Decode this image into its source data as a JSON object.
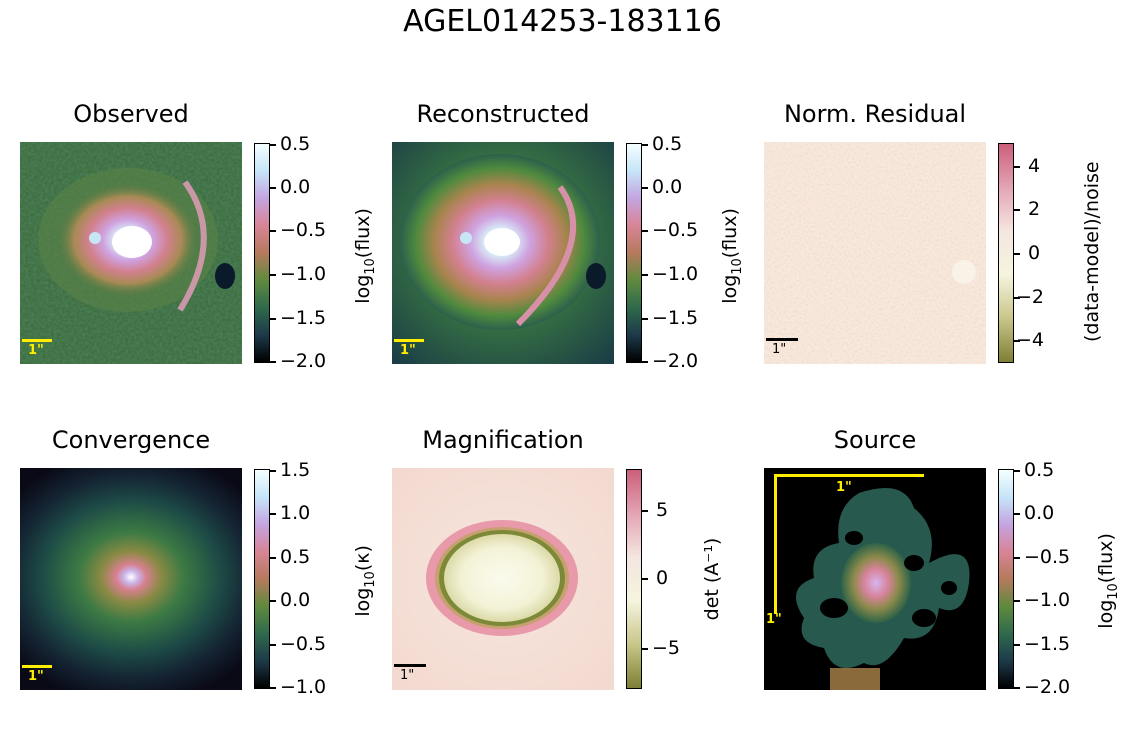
{
  "figure": {
    "title": "AGEL014253-183116"
  },
  "panels": [
    {
      "title": "Observed",
      "cbar_label": "log10(flux)",
      "scale_label": "1\""
    },
    {
      "title": "Reconstructed",
      "cbar_label": "log10(flux)",
      "scale_label": "1\""
    },
    {
      "title": "Norm. Residual",
      "cbar_label": "(data-model)/noise",
      "scale_label": "1\""
    },
    {
      "title": "Convergence",
      "cbar_label": "log10(κ)",
      "scale_label": "1\""
    },
    {
      "title": "Magnification",
      "cbar_label": "det (A⁻¹)",
      "scale_label": "1\""
    },
    {
      "title": "Source",
      "cbar_label": "log10(flux)",
      "scale_label_x": "1\"",
      "scale_label_y": "1\""
    }
  ],
  "chart_data": [
    {
      "type": "heatmap",
      "title": "Observed",
      "colorbar": {
        "label": "log10(flux)",
        "range": [
          -2.0,
          0.5
        ],
        "ticks": [
          "0.5",
          "0.0",
          "−0.5",
          "−1.0",
          "−1.5",
          "−2.0"
        ]
      },
      "colormap": "cubehelix"
    },
    {
      "type": "heatmap",
      "title": "Reconstructed",
      "colorbar": {
        "label": "log10(flux)",
        "range": [
          -2.0,
          0.5
        ],
        "ticks": [
          "0.5",
          "0.0",
          "−0.5",
          "−1.0",
          "−1.5",
          "−2.0"
        ]
      },
      "colormap": "cubehelix"
    },
    {
      "type": "heatmap",
      "title": "Norm. Residual",
      "colorbar": {
        "label": "(data-model)/noise",
        "range": [
          -5,
          5
        ],
        "ticks": [
          "4",
          "2",
          "0",
          "−2",
          "−4"
        ]
      },
      "colormap": "pink-olive diverging"
    },
    {
      "type": "heatmap",
      "title": "Convergence",
      "colorbar": {
        "label": "log10(κ)",
        "range": [
          -1.0,
          1.5
        ],
        "ticks": [
          "1.5",
          "1.0",
          "0.5",
          "0.0",
          "−0.5",
          "−1.0"
        ]
      },
      "colormap": "cubehelix"
    },
    {
      "type": "heatmap",
      "title": "Magnification",
      "colorbar": {
        "label": "det (A⁻¹)",
        "range": [
          -8,
          8
        ],
        "ticks": [
          "5",
          "0",
          "−5"
        ]
      },
      "colormap": "pink-olive diverging"
    },
    {
      "type": "heatmap",
      "title": "Source",
      "colorbar": {
        "label": "log10(flux)",
        "range": [
          -2.0,
          0.5
        ],
        "ticks": [
          "0.5",
          "0.0",
          "−0.5",
          "−1.0",
          "−1.5",
          "−2.0"
        ]
      },
      "colormap": "cubehelix"
    }
  ],
  "colors": {
    "scalebar_yellow": "#ffee00",
    "scalebar_black": "#000000"
  }
}
